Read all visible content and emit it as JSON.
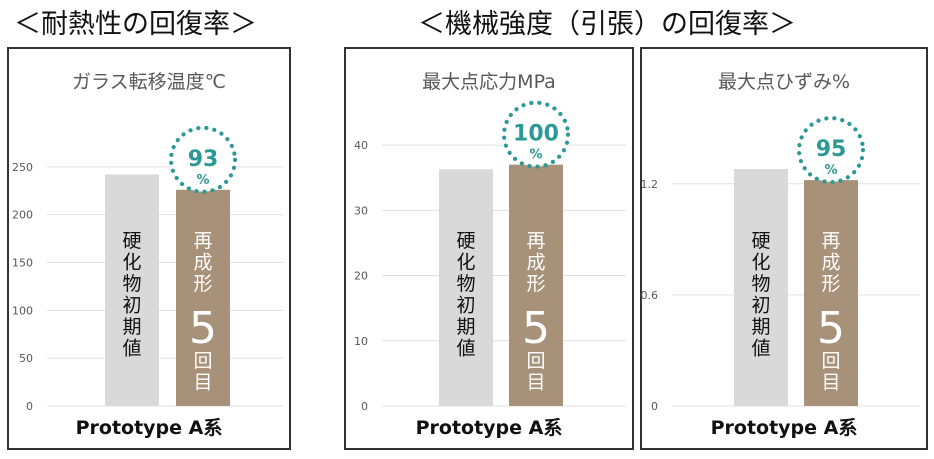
{
  "headings": {
    "left": "＜耐熱性の回復率＞",
    "right": "＜機械強度（引張）の回復率＞"
  },
  "colors": {
    "initial_bar": "#d9d9d9",
    "remolded_bar": "#a79279",
    "badge": "#2b9a96",
    "gridline": "#e0e0e0"
  },
  "bar_labels": {
    "initial": [
      "硬",
      "化",
      "物",
      "初",
      "期",
      "値"
    ],
    "remolded_top": [
      "再",
      "成",
      "形"
    ],
    "remolded_number": "5",
    "remolded_bottom": [
      "回",
      "目"
    ]
  },
  "chart_data": [
    {
      "type": "bar",
      "title": "ガラス転移温度℃",
      "xlabel": "Prototype A系",
      "categories": [
        "硬化物初期値",
        "再成形5回目"
      ],
      "values": [
        242,
        226
      ],
      "ylim": [
        0,
        300
      ],
      "yticks": [
        0,
        50,
        100,
        150,
        200,
        250
      ],
      "ytick_labels": [
        "0",
        "50",
        "100",
        "150",
        "200",
        "250"
      ],
      "grid": true,
      "recovery": {
        "value": "93",
        "unit": "%"
      }
    },
    {
      "type": "bar",
      "title": "最大点応力MPa",
      "xlabel": "Prototype A系",
      "categories": [
        "硬化物初期値",
        "再成形5回目"
      ],
      "values": [
        36.3,
        37.0
      ],
      "ylim": [
        0,
        44
      ],
      "yticks": [
        0,
        10,
        20,
        30,
        40
      ],
      "ytick_labels": [
        "0",
        "10",
        "20",
        "30",
        "40"
      ],
      "grid": true,
      "recovery": {
        "value": "100",
        "unit": "%"
      }
    },
    {
      "type": "bar",
      "title": "最大点ひずみ%",
      "xlabel": "Prototype A系",
      "categories": [
        "硬化物初期値",
        "再成形5回目"
      ],
      "values": [
        1.28,
        1.22
      ],
      "ylim": [
        0,
        1.55
      ],
      "yticks": [
        0,
        0.6,
        1.2
      ],
      "ytick_labels": [
        "0",
        "0.6",
        "1.2"
      ],
      "grid": true,
      "recovery": {
        "value": "95",
        "unit": "%"
      }
    }
  ]
}
